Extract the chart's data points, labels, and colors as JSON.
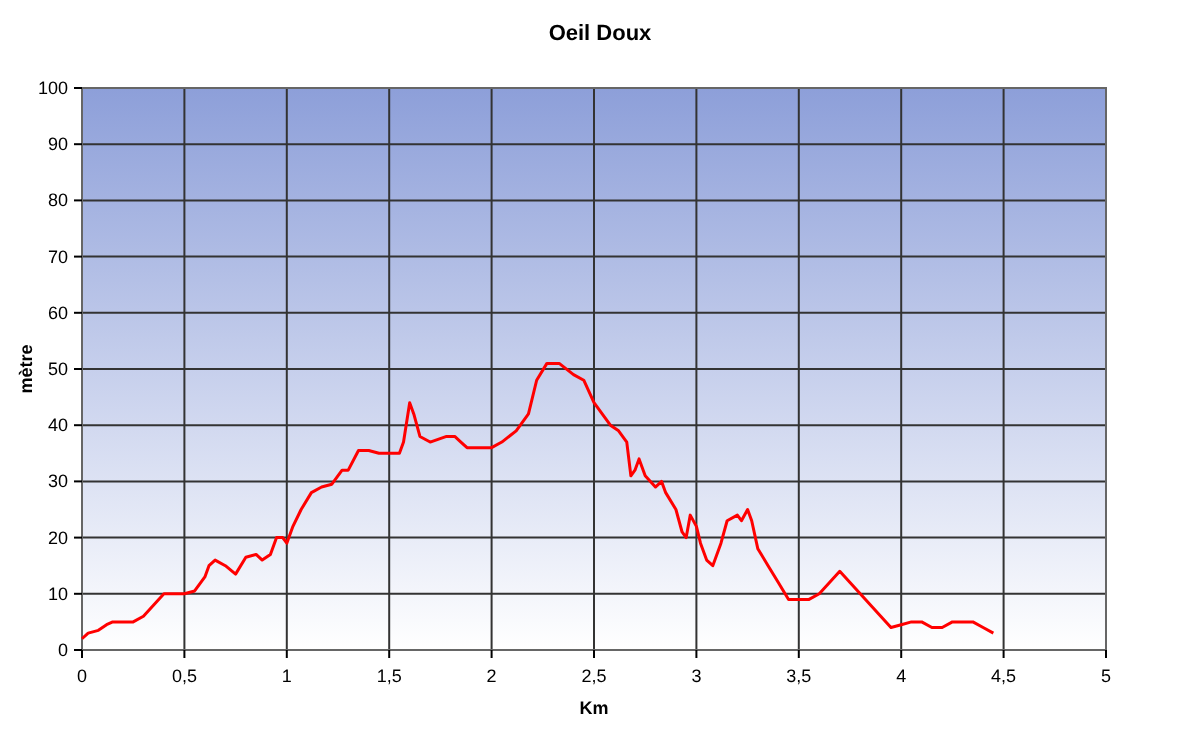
{
  "chart_data": {
    "type": "line",
    "title": "Oeil Doux",
    "xlabel": "Km",
    "ylabel": "mètre",
    "xlim": [
      0,
      5
    ],
    "ylim": [
      0,
      100
    ],
    "xticks": [
      0,
      {
        "value": 0.5,
        "label": "0,5"
      },
      1,
      {
        "value": 1.5,
        "label": "1,5"
      },
      2,
      {
        "value": 2.5,
        "label": "2,5"
      },
      3,
      {
        "value": 3.5,
        "label": "3,5"
      },
      4,
      {
        "value": 4.5,
        "label": "4,5"
      },
      5
    ],
    "yticks": [
      0,
      10,
      20,
      30,
      40,
      50,
      60,
      70,
      80,
      90,
      100
    ],
    "grid": true,
    "marker": "none",
    "line_style": "solid",
    "series": [
      {
        "color": "#ff0000",
        "x": [
          0,
          0.03,
          0.08,
          0.12,
          0.15,
          0.25,
          0.3,
          0.35,
          0.4,
          0.5,
          0.55,
          0.6,
          0.62,
          0.65,
          0.7,
          0.75,
          0.8,
          0.85,
          0.88,
          0.92,
          0.95,
          0.98,
          1.0,
          1.03,
          1.07,
          1.12,
          1.17,
          1.22,
          1.27,
          1.3,
          1.35,
          1.4,
          1.45,
          1.5,
          1.55,
          1.57,
          1.6,
          1.62,
          1.65,
          1.7,
          1.78,
          1.82,
          1.85,
          1.88,
          2.0,
          2.05,
          2.12,
          2.18,
          2.22,
          2.27,
          2.33,
          2.4,
          2.45,
          2.5,
          2.58,
          2.62,
          2.66,
          2.68,
          2.7,
          2.72,
          2.75,
          2.8,
          2.83,
          2.85,
          2.9,
          2.93,
          2.95,
          2.97,
          3.0,
          3.02,
          3.05,
          3.08,
          3.12,
          3.15,
          3.2,
          3.22,
          3.25,
          3.27,
          3.3,
          3.35,
          3.4,
          3.45,
          3.55,
          3.6,
          3.65,
          3.7,
          3.75,
          3.8,
          3.85,
          3.9,
          3.95,
          4.0,
          4.05,
          4.1,
          4.15,
          4.2,
          4.25,
          4.3,
          4.35,
          4.4,
          4.45
        ],
        "values": [
          2,
          3,
          3.5,
          4.5,
          5,
          5,
          6,
          8,
          10,
          10,
          10.5,
          13,
          15,
          16,
          15,
          13.5,
          16.5,
          17,
          16,
          17,
          20,
          20,
          19,
          22,
          25,
          28,
          29,
          29.5,
          32,
          32,
          35.5,
          35.5,
          35,
          35,
          35,
          37,
          44,
          42,
          38,
          37,
          38,
          38,
          37,
          36,
          36,
          37,
          39,
          42,
          48,
          51,
          51,
          49,
          48,
          44,
          40,
          39,
          37,
          31,
          32,
          34,
          31,
          29,
          30,
          28,
          25,
          21,
          20,
          24,
          22,
          19,
          16,
          15,
          19,
          23,
          24,
          23,
          25,
          23,
          18,
          15,
          12,
          9,
          9,
          10,
          12,
          14,
          12,
          10,
          8,
          6,
          4,
          4.5,
          5,
          5,
          4,
          4,
          5,
          5,
          5,
          4,
          3
        ]
      }
    ]
  }
}
